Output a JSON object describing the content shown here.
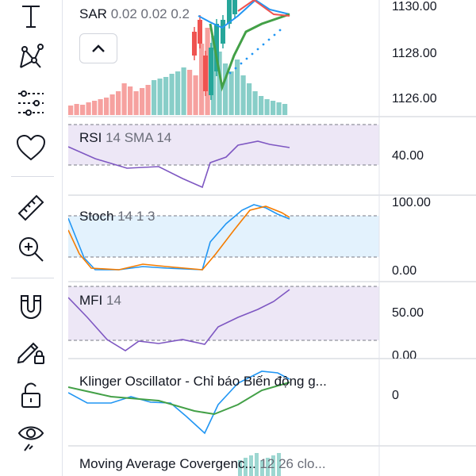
{
  "toolbar": {
    "tools": [
      {
        "icon": "text-icon"
      },
      {
        "icon": "pattern-icon"
      },
      {
        "icon": "indicators-icon"
      },
      {
        "icon": "favorites-heart-icon"
      },
      {
        "icon": "ruler-icon"
      },
      {
        "icon": "zoom-in-icon"
      },
      {
        "icon": "magnet-icon"
      },
      {
        "icon": "lock-drawing-icon"
      },
      {
        "icon": "unlock-icon"
      },
      {
        "icon": "eye-visibility-icon"
      }
    ]
  },
  "price_pane": {
    "indicator_name": "SAR",
    "indicator_params": "0.02 0.02 0.2",
    "axis_labels": [
      "1130.00",
      "1128.00",
      "1126.00"
    ]
  },
  "rsi_pane": {
    "name": "RSI",
    "params": "14 SMA 14",
    "axis_label": "40.00"
  },
  "stoch_pane": {
    "name": "Stoch",
    "params": "14 1 3",
    "axis_labels": [
      "100.00",
      "0.00"
    ]
  },
  "mfi_pane": {
    "name": "MFI",
    "params": "14",
    "axis_labels": [
      "50.00",
      "0.00"
    ]
  },
  "klinger_pane": {
    "name": "Klinger Oscillator - Chỉ báo Biến động g...",
    "axis_label": "0"
  },
  "macd_pane": {
    "name": "Moving Average Covergenc...",
    "params": "12 26 clo..."
  },
  "colors": {
    "bull": "#26a69a",
    "bear": "#ef5350",
    "blue": "#2196f3",
    "orange": "#f57c00",
    "purple": "#7e57c2",
    "green": "#43a047",
    "band_purple": "#ede7f6",
    "band_blue": "#e3f2fd"
  }
}
